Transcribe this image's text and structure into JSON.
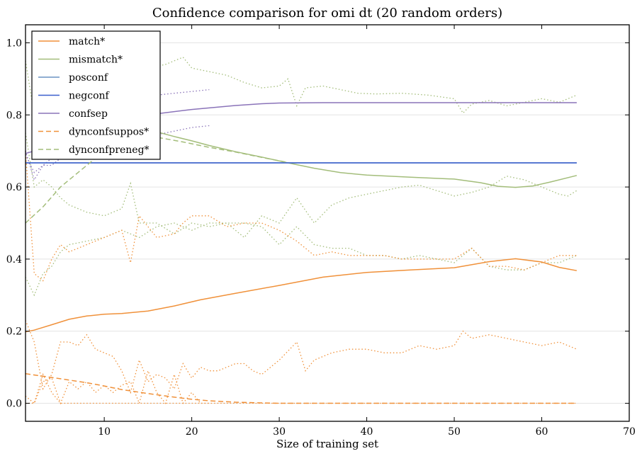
{
  "chart_data": {
    "type": "line",
    "title": "Confidence comparison for omi dt (20 random orders)",
    "xlabel": "Size of training set",
    "ylabel": "",
    "xlim": [
      1,
      70
    ],
    "ylim": [
      -0.05,
      1.05
    ],
    "xticks": [
      10,
      20,
      30,
      40,
      50,
      60,
      70
    ],
    "yticks": [
      0.0,
      0.2,
      0.4,
      0.6,
      0.8,
      1.0
    ],
    "xtick_labels": [
      "10",
      "20",
      "30",
      "40",
      "50",
      "60",
      "70"
    ],
    "ytick_labels": [
      "0.0",
      "0.2",
      "0.4",
      "0.6",
      "0.8",
      "1.0"
    ],
    "grid": "horizontal",
    "legend_position": "top-left",
    "colors": {
      "orange": "#f0913a",
      "green": "#a3bd7a",
      "lightblue": "#6a94c4",
      "blue": "#3a5fcd",
      "purple": "#8a73b9"
    },
    "series": [
      {
        "name": "match*",
        "style": "solid",
        "color": "orange",
        "x": [
          1,
          2,
          4,
          6,
          8,
          10,
          12,
          15,
          18,
          21,
          25,
          30,
          35,
          40,
          45,
          50,
          54,
          57,
          60,
          62,
          64
        ],
        "y": [
          0.198,
          0.203,
          0.218,
          0.233,
          0.242,
          0.247,
          0.249,
          0.256,
          0.27,
          0.287,
          0.305,
          0.327,
          0.35,
          0.363,
          0.37,
          0.376,
          0.393,
          0.401,
          0.392,
          0.377,
          0.368
        ]
      },
      {
        "name": "mismatch*",
        "style": "solid",
        "color": "green",
        "x": [
          12,
          14,
          16,
          18,
          20,
          22,
          25,
          28,
          31,
          34,
          37,
          40,
          45,
          50,
          53,
          55,
          57,
          59,
          61,
          64
        ],
        "y": [
          0.78,
          0.765,
          0.753,
          0.74,
          0.728,
          0.715,
          0.698,
          0.683,
          0.667,
          0.652,
          0.64,
          0.633,
          0.627,
          0.622,
          0.612,
          0.602,
          0.599,
          0.603,
          0.614,
          0.632
        ]
      },
      {
        "name": "posconf",
        "style": "solid",
        "color": "lightblue",
        "x": [
          1,
          64
        ],
        "y": [
          0.667,
          0.667
        ]
      },
      {
        "name": "negconf",
        "style": "solid",
        "color": "blue",
        "x": [
          1,
          64
        ],
        "y": [
          0.667,
          0.667
        ]
      },
      {
        "name": "confsep",
        "style": "solid",
        "color": "purple",
        "x": [
          1,
          5,
          10,
          15,
          20,
          25,
          28,
          30,
          35,
          40,
          50,
          60,
          64
        ],
        "y": [
          0.693,
          0.72,
          0.77,
          0.8,
          0.815,
          0.826,
          0.831,
          0.833,
          0.834,
          0.834,
          0.834,
          0.834,
          0.834
        ]
      },
      {
        "name": "dynconfsuppos*",
        "style": "dashed",
        "color": "orange",
        "x": [
          1,
          5,
          8,
          10,
          12,
          15,
          18,
          20,
          22,
          25,
          28,
          30,
          35,
          40,
          50,
          64
        ],
        "y": [
          0.082,
          0.068,
          0.057,
          0.048,
          0.038,
          0.027,
          0.017,
          0.011,
          0.007,
          0.003,
          0.001,
          0.0,
          0.0,
          0.0,
          0.0,
          0.0
        ]
      },
      {
        "name": "dynconfpreneg*",
        "style": "dashed",
        "color": "green",
        "x": [
          1,
          3,
          5,
          7,
          9,
          11,
          13,
          16,
          19,
          22,
          25,
          28,
          31
        ],
        "y": [
          0.5,
          0.545,
          0.6,
          0.64,
          0.68,
          0.715,
          0.735,
          0.738,
          0.725,
          0.71,
          0.697,
          0.682,
          0.668
        ]
      },
      {
        "name": "",
        "style": "dotted",
        "color": "green",
        "x": [
          13,
          15,
          17,
          19,
          20,
          22,
          24,
          26,
          28,
          30,
          31,
          32,
          33,
          35,
          37,
          39,
          41,
          44,
          47,
          50,
          51,
          52,
          54,
          56,
          58,
          60,
          62,
          64
        ],
        "y": [
          0.9,
          0.93,
          0.94,
          0.96,
          0.93,
          0.92,
          0.91,
          0.89,
          0.875,
          0.88,
          0.9,
          0.825,
          0.875,
          0.88,
          0.87,
          0.86,
          0.858,
          0.86,
          0.855,
          0.845,
          0.805,
          0.83,
          0.84,
          0.825,
          0.835,
          0.845,
          0.835,
          0.855
        ]
      },
      {
        "name": "",
        "style": "dotted",
        "color": "green",
        "x": [
          1,
          2,
          3,
          4,
          5,
          6,
          7,
          8,
          10,
          12,
          13,
          14,
          16,
          18,
          20,
          22,
          24,
          26,
          28,
          30,
          32,
          34,
          36,
          38,
          40,
          42,
          44,
          46,
          48,
          50,
          52,
          54,
          56,
          58,
          60,
          62,
          63,
          64
        ],
        "y": [
          0.75,
          0.6,
          0.62,
          0.6,
          0.57,
          0.55,
          0.54,
          0.53,
          0.52,
          0.54,
          0.61,
          0.5,
          0.5,
          0.47,
          0.5,
          0.49,
          0.5,
          0.46,
          0.52,
          0.5,
          0.57,
          0.5,
          0.55,
          0.57,
          0.58,
          0.59,
          0.6,
          0.605,
          0.59,
          0.575,
          0.585,
          0.6,
          0.63,
          0.62,
          0.6,
          0.58,
          0.575,
          0.59
        ]
      },
      {
        "name": "",
        "style": "dotted",
        "color": "green",
        "x": [
          1,
          2,
          3,
          4,
          5,
          6,
          8,
          10,
          12,
          14,
          16,
          18,
          20,
          22,
          24,
          26,
          28,
          30,
          32,
          34,
          36,
          38,
          40,
          42,
          44,
          46,
          48,
          50,
          52,
          54,
          56,
          58,
          60,
          62,
          64
        ],
        "y": [
          0.35,
          0.3,
          0.36,
          0.38,
          0.42,
          0.44,
          0.45,
          0.46,
          0.48,
          0.46,
          0.49,
          0.5,
          0.48,
          0.5,
          0.5,
          0.5,
          0.49,
          0.44,
          0.49,
          0.44,
          0.43,
          0.43,
          0.41,
          0.41,
          0.4,
          0.41,
          0.4,
          0.39,
          0.43,
          0.38,
          0.37,
          0.37,
          0.39,
          0.39,
          0.41
        ]
      },
      {
        "name": "",
        "style": "dotted",
        "color": "orange",
        "x": [
          1,
          2,
          3,
          4,
          5,
          6,
          7,
          8,
          10,
          12,
          13,
          14,
          16,
          18,
          19,
          20,
          22,
          24,
          26,
          28,
          30,
          32,
          34,
          36,
          38,
          40,
          42,
          44,
          46,
          48,
          50,
          52,
          54,
          56,
          58,
          60,
          62,
          64
        ],
        "y": [
          0.7,
          0.36,
          0.34,
          0.4,
          0.44,
          0.42,
          0.43,
          0.44,
          0.46,
          0.48,
          0.39,
          0.52,
          0.46,
          0.47,
          0.5,
          0.52,
          0.52,
          0.49,
          0.5,
          0.5,
          0.48,
          0.45,
          0.41,
          0.42,
          0.41,
          0.41,
          0.41,
          0.4,
          0.4,
          0.4,
          0.4,
          0.43,
          0.38,
          0.38,
          0.37,
          0.39,
          0.41,
          0.41
        ]
      },
      {
        "name": "",
        "style": "dotted",
        "color": "orange",
        "x": [
          1,
          2,
          3,
          4,
          5,
          6,
          7,
          8,
          9,
          10,
          12,
          13,
          14,
          16,
          18,
          20,
          22,
          24,
          26,
          28,
          30,
          32,
          34,
          36,
          38,
          40,
          42,
          44,
          46,
          48,
          50,
          52,
          54,
          56,
          58,
          60,
          62,
          64
        ],
        "y": [
          0.0,
          0.0,
          0.08,
          0.03,
          0.0,
          0.0,
          0.0,
          0.0,
          0.0,
          0.0,
          0.0,
          0.0,
          0.0,
          0.0,
          0.0,
          0.0,
          0.0,
          0.0,
          0.0,
          0.0,
          0.0,
          0.0,
          0.0,
          0.0,
          0.0,
          0.0,
          0.0,
          0.0,
          0.0,
          0.0,
          0.0,
          0.0,
          0.0,
          0.0,
          0.0,
          0.0,
          0.0,
          0.0
        ]
      },
      {
        "name": "",
        "style": "dotted",
        "color": "orange",
        "x": [
          1,
          2,
          3,
          4,
          5,
          6,
          7,
          8,
          9,
          10,
          11,
          12,
          13,
          14,
          15,
          16,
          17,
          18,
          19,
          20,
          21,
          22,
          23,
          24,
          25,
          26,
          27,
          28,
          30,
          32,
          33,
          34,
          36,
          38,
          40,
          42,
          44,
          46,
          48,
          50,
          51,
          52,
          54,
          56,
          58,
          60,
          62,
          64
        ],
        "y": [
          0.23,
          0.17,
          0.04,
          0.08,
          0.17,
          0.17,
          0.16,
          0.19,
          0.15,
          0.14,
          0.13,
          0.09,
          0.03,
          0.12,
          0.06,
          0.08,
          0.07,
          0.04,
          0.11,
          0.07,
          0.1,
          0.09,
          0.09,
          0.1,
          0.11,
          0.11,
          0.09,
          0.08,
          0.12,
          0.17,
          0.09,
          0.12,
          0.14,
          0.15,
          0.15,
          0.14,
          0.14,
          0.16,
          0.15,
          0.16,
          0.2,
          0.18,
          0.19,
          0.18,
          0.17,
          0.16,
          0.17,
          0.15
        ]
      },
      {
        "name": "",
        "style": "dotted",
        "color": "orange",
        "x": [
          1,
          2,
          3,
          4,
          5,
          6,
          7,
          8,
          9,
          10,
          11,
          12,
          13,
          14,
          15,
          16,
          17,
          18,
          19,
          20,
          21,
          22
        ],
        "y": [
          0.02,
          0.0,
          0.06,
          0.07,
          0.0,
          0.06,
          0.04,
          0.06,
          0.03,
          0.05,
          0.03,
          0.05,
          0.06,
          0.0,
          0.09,
          0.03,
          0.0,
          0.08,
          0.0,
          0.03,
          0.0,
          0.0
        ]
      },
      {
        "name": "",
        "style": "dotted",
        "color": "purple",
        "x": [
          1,
          2,
          3,
          4,
          5,
          6,
          8,
          10,
          12,
          14,
          16,
          18,
          20,
          22
        ],
        "y": [
          0.7,
          0.62,
          0.66,
          0.68,
          0.72,
          0.76,
          0.78,
          0.8,
          0.83,
          0.85,
          0.855,
          0.86,
          0.865,
          0.87
        ]
      },
      {
        "name": "",
        "style": "dotted",
        "color": "purple",
        "x": [
          1,
          2,
          3,
          4,
          5,
          6,
          8,
          10,
          12,
          14,
          16,
          18,
          20,
          22
        ],
        "y": [
          0.69,
          0.64,
          0.66,
          0.66,
          0.68,
          0.7,
          0.71,
          0.72,
          0.73,
          0.74,
          0.745,
          0.755,
          0.765,
          0.77
        ]
      },
      {
        "name": "",
        "style": "dotted",
        "color": "green",
        "x": [
          1,
          2,
          3,
          4,
          5,
          6
        ],
        "y": [
          0.95,
          0.8,
          0.84,
          0.88,
          0.9,
          0.92
        ]
      }
    ],
    "legend": [
      {
        "label": "match*",
        "color": "orange",
        "style": "solid"
      },
      {
        "label": "mismatch*",
        "color": "green",
        "style": "solid"
      },
      {
        "label": "posconf",
        "color": "lightblue",
        "style": "solid"
      },
      {
        "label": "negconf",
        "color": "blue",
        "style": "solid"
      },
      {
        "label": "confsep",
        "color": "purple",
        "style": "solid"
      },
      {
        "label": "dynconfsuppos*",
        "color": "orange",
        "style": "dashed"
      },
      {
        "label": "dynconfpreneg*",
        "color": "green",
        "style": "dashed"
      }
    ]
  }
}
